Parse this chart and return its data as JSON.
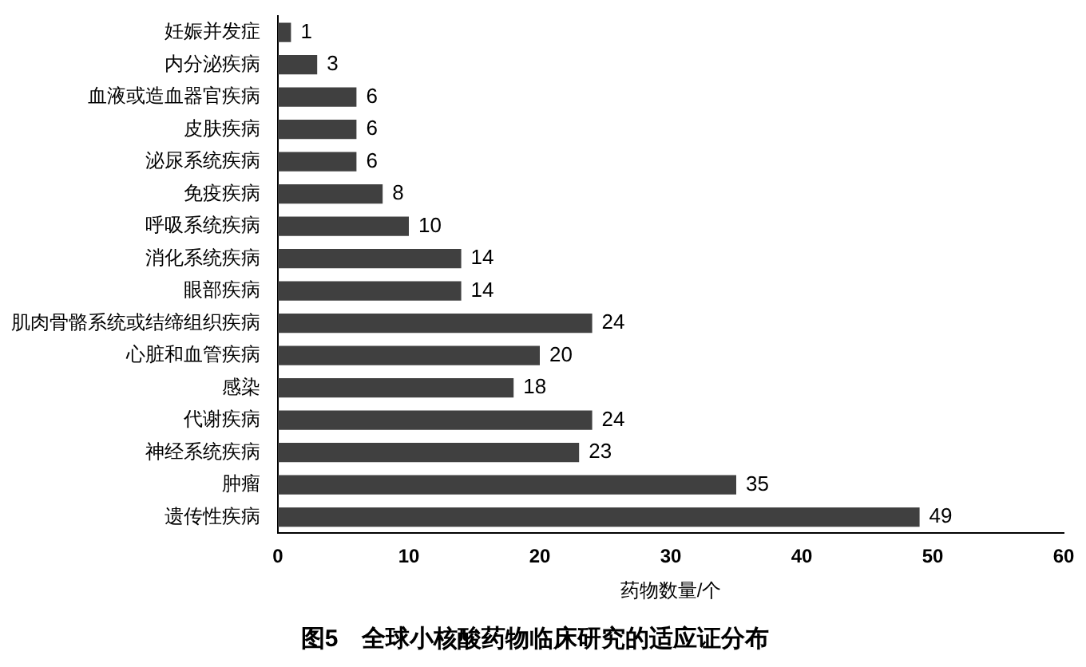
{
  "chart_data": {
    "type": "bar",
    "orientation": "horizontal",
    "title": "图5　全球小核酸药物临床研究的适应证分布",
    "xlabel": "药物数量/个",
    "categories": [
      "妊娠并发症",
      "内分泌疾病",
      "血液或造血器官疾病",
      "皮肤疾病",
      "泌尿系统疾病",
      "免疫疾病",
      "呼吸系统疾病",
      "消化系统疾病",
      "眼部疾病",
      "肌肉骨骼系统或结缔组织疾病",
      "心脏和血管疾病",
      "感染",
      "代谢疾病",
      "神经系统疾病",
      "肿瘤",
      "遗传性疾病"
    ],
    "values": [
      1,
      3,
      6,
      6,
      6,
      8,
      10,
      14,
      14,
      24,
      20,
      18,
      24,
      23,
      35,
      49
    ],
    "color": "#404040",
    "xlim": [
      0,
      60
    ],
    "xticks": [
      0,
      10,
      20,
      30,
      40,
      50,
      60
    ],
    "grid": false,
    "data_labels": true
  }
}
